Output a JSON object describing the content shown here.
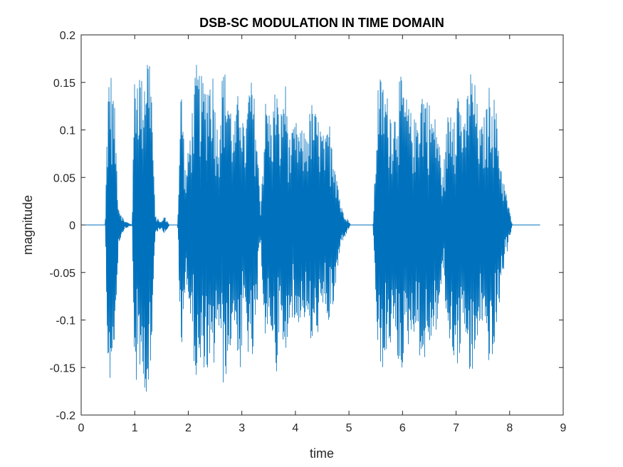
{
  "chart_data": {
    "type": "line",
    "title": "DSB-SC MODULATION IN TIME DOMAIN",
    "xlabel": "time",
    "ylabel": "magnitude",
    "xlim": [
      0,
      9
    ],
    "ylim": [
      -0.2,
      0.2
    ],
    "xticks": [
      "0",
      "1",
      "2",
      "3",
      "4",
      "5",
      "6",
      "7",
      "8",
      "9"
    ],
    "yticks": [
      "-0.2",
      "-0.15",
      "-0.1",
      "-0.05",
      "0",
      "0.05",
      "0.1",
      "0.15",
      "0.2"
    ],
    "grid": false,
    "series": [
      {
        "color": "#0072bd",
        "signal_start": 0.0,
        "signal_end": 8.57,
        "envelope": [
          [
            0.45,
            0.0
          ],
          [
            0.5,
            0.17
          ],
          [
            0.56,
            0.16
          ],
          [
            0.62,
            0.13
          ],
          [
            0.7,
            0.02
          ],
          [
            0.8,
            0.005
          ],
          [
            0.95,
            0.0
          ],
          [
            1.0,
            0.17
          ],
          [
            1.08,
            0.17
          ],
          [
            1.15,
            0.15
          ],
          [
            1.22,
            0.19
          ],
          [
            1.3,
            0.18
          ],
          [
            1.38,
            0.01
          ],
          [
            1.5,
            0.003
          ],
          [
            1.55,
            0.01
          ],
          [
            1.6,
            0.005
          ],
          [
            1.65,
            0.0
          ],
          [
            1.8,
            0.0
          ],
          [
            1.87,
            0.16
          ],
          [
            1.95,
            0.05
          ],
          [
            2.05,
            0.11
          ],
          [
            2.15,
            0.17
          ],
          [
            2.3,
            0.15
          ],
          [
            2.45,
            0.17
          ],
          [
            2.55,
            0.1
          ],
          [
            2.65,
            0.17
          ],
          [
            2.75,
            0.15
          ],
          [
            2.85,
            0.1
          ],
          [
            2.97,
            0.16
          ],
          [
            3.05,
            0.09
          ],
          [
            3.15,
            0.16
          ],
          [
            3.25,
            0.13
          ],
          [
            3.35,
            0.02
          ],
          [
            3.45,
            0.14
          ],
          [
            3.55,
            0.11
          ],
          [
            3.65,
            0.16
          ],
          [
            3.7,
            0.1
          ],
          [
            3.8,
            0.16
          ],
          [
            3.9,
            0.09
          ],
          [
            4.0,
            0.11
          ],
          [
            4.1,
            0.1
          ],
          [
            4.2,
            0.1
          ],
          [
            4.3,
            0.13
          ],
          [
            4.45,
            0.11
          ],
          [
            4.55,
            0.09
          ],
          [
            4.65,
            0.11
          ],
          [
            4.75,
            0.07
          ],
          [
            4.85,
            0.02
          ],
          [
            4.95,
            0.01
          ],
          [
            5.03,
            0.0
          ],
          [
            5.45,
            0.0
          ],
          [
            5.55,
            0.16
          ],
          [
            5.65,
            0.15
          ],
          [
            5.75,
            0.13
          ],
          [
            5.85,
            0.12
          ],
          [
            5.95,
            0.16
          ],
          [
            6.05,
            0.14
          ],
          [
            6.15,
            0.12
          ],
          [
            6.25,
            0.11
          ],
          [
            6.35,
            0.15
          ],
          [
            6.45,
            0.14
          ],
          [
            6.55,
            0.12
          ],
          [
            6.65,
            0.11
          ],
          [
            6.75,
            0.05
          ],
          [
            6.85,
            0.12
          ],
          [
            6.95,
            0.14
          ],
          [
            7.05,
            0.15
          ],
          [
            7.15,
            0.1
          ],
          [
            7.25,
            0.17
          ],
          [
            7.35,
            0.15
          ],
          [
            7.45,
            0.1
          ],
          [
            7.55,
            0.12
          ],
          [
            7.65,
            0.16
          ],
          [
            7.75,
            0.12
          ],
          [
            7.85,
            0.06
          ],
          [
            7.95,
            0.03
          ],
          [
            8.05,
            0.0
          ]
        ]
      }
    ]
  }
}
